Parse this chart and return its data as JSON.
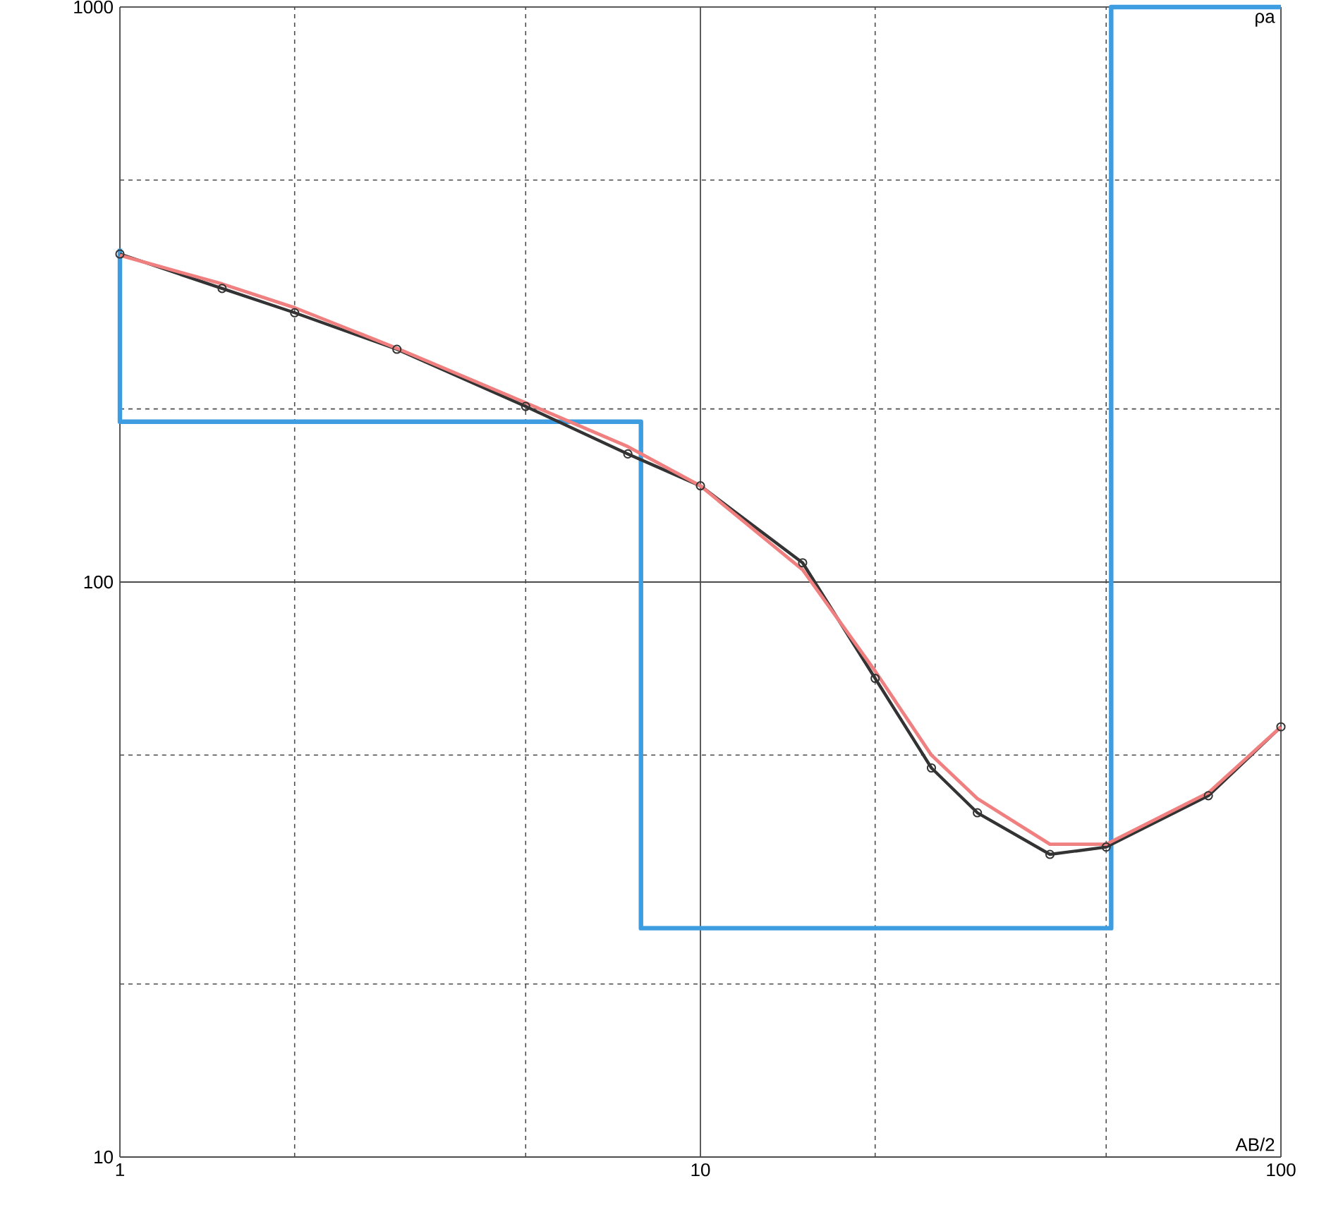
{
  "chart_data": {
    "type": "line",
    "xlabel": "AB/2",
    "ylabel": "ρa",
    "log": "xy",
    "grid": true,
    "xlim": [
      1,
      100
    ],
    "ylim": [
      10,
      1000
    ],
    "xticks": [
      1,
      {
        "value": 2,
        "label": null
      },
      {
        "value": 5,
        "label": null
      },
      10,
      {
        "value": 20,
        "label": null
      },
      {
        "value": 50,
        "label": null
      },
      100
    ],
    "yticks": [
      10,
      {
        "value": 20,
        "label": null
      },
      {
        "value": 50,
        "label": null
      },
      100,
      {
        "value": 200,
        "label": null
      },
      {
        "value": 500,
        "label": null
      },
      1000
    ],
    "series": [
      {
        "color": "#3d9de0",
        "x": [
          1,
          1,
          7.9,
          7.9,
          51,
          51,
          100
        ],
        "values": [
          380,
          190,
          190,
          25,
          25,
          1000,
          1000
        ],
        "marker": "none"
      },
      {
        "color": "#333333",
        "x": [
          1,
          1.5,
          2,
          3,
          5,
          7.5,
          10,
          15,
          20,
          25,
          30,
          40,
          50,
          75,
          100
        ],
        "values": [
          372,
          324,
          294,
          254,
          202,
          167,
          147,
          108,
          68,
          47.5,
          39.7,
          33.6,
          34.6,
          42.5,
          56
        ],
        "marker": "circle"
      },
      {
        "color": "#f08080",
        "x": [
          1,
          1.5,
          2,
          3,
          5,
          7.5,
          10,
          15,
          20,
          25,
          30,
          40,
          50,
          75,
          100
        ],
        "values": [
          370,
          330,
          300,
          255,
          205,
          172,
          147,
          105,
          70,
          50,
          42,
          35,
          35,
          43,
          56
        ],
        "marker": "none"
      }
    ]
  }
}
